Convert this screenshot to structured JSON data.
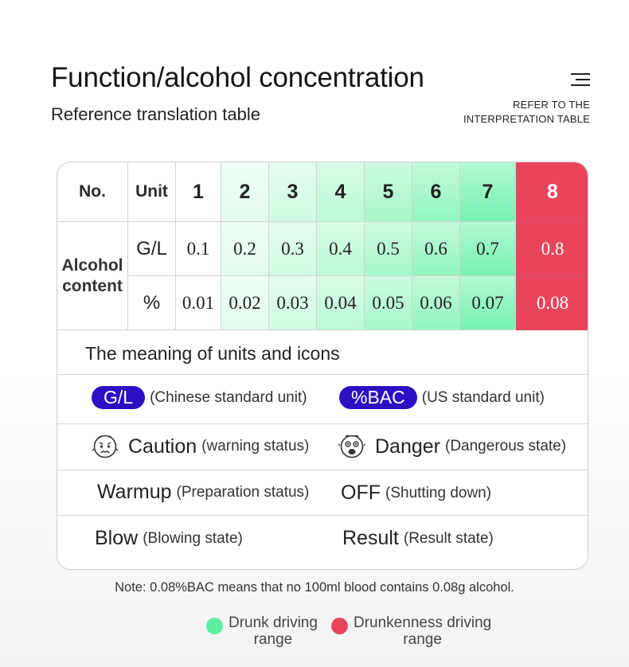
{
  "header": {
    "title": "Function/alcohol concentration",
    "subtitle": "Reference translation table",
    "refer_line1": "REFER TO THE",
    "refer_line2": "INTERPRETATION TABLE",
    "menu_icon": "menu-icon"
  },
  "table": {
    "no_label": "No.",
    "unit_label": "Unit",
    "alcohol_line1": "Alcohol",
    "alcohol_line2": "content",
    "unit_gl": "G/L",
    "unit_pct": "%",
    "columns": [
      {
        "no": "1",
        "gl": "0.1",
        "pct": "0.01"
      },
      {
        "no": "2",
        "gl": "0.2",
        "pct": "0.02"
      },
      {
        "no": "3",
        "gl": "0.3",
        "pct": "0.03"
      },
      {
        "no": "4",
        "gl": "0.4",
        "pct": "0.04"
      },
      {
        "no": "5",
        "gl": "0.5",
        "pct": "0.05"
      },
      {
        "no": "6",
        "gl": "0.6",
        "pct": "0.06"
      },
      {
        "no": "7",
        "gl": "0.7",
        "pct": "0.07"
      },
      {
        "no": "8",
        "gl": "0.8",
        "pct": "0.08"
      }
    ],
    "green_color": "#5ef0a2",
    "red_color": "#e8455d"
  },
  "meaning": {
    "title": "The meaning of units and icons",
    "gl_pill": "G/L",
    "gl_desc": "(Chinese standard unit)",
    "bac_pill": "%BAC",
    "bac_desc": "(US standard unit)",
    "caution_word": "Caution",
    "caution_desc": "(warning status)",
    "caution_icon": "worried-face-icon",
    "danger_word": "Danger",
    "danger_desc": "(Dangerous state)",
    "danger_icon": "shocked-face-icon",
    "warmup_word": "Warmup",
    "warmup_desc": "(Preparation status)",
    "off_word": "OFF",
    "off_desc": "(Shutting down)",
    "blow_word": "Blow",
    "blow_desc": "(Blowing state)",
    "result_word": "Result",
    "result_desc": "(Result state)"
  },
  "note": "Note: 0.08%BAC means that no 100ml blood contains 0.08g alcohol.",
  "legend": {
    "green_line1": "Drunk driving",
    "green_line2": "range",
    "red_line1": "Drunkenness driving",
    "red_line2": "range",
    "green_color": "#5ef0a2",
    "red_color": "#e8455d"
  }
}
